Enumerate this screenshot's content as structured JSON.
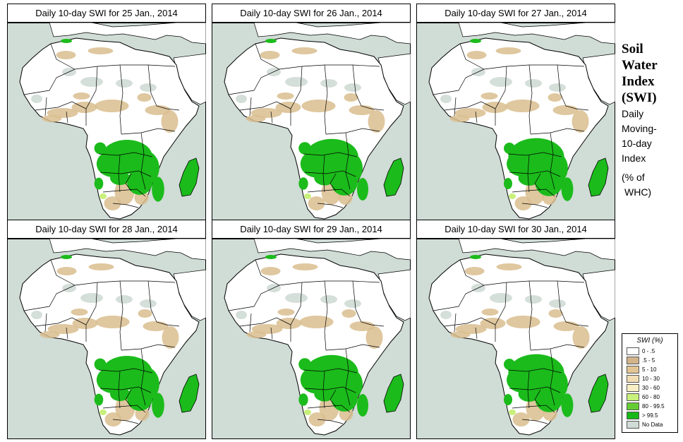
{
  "panels": [
    {
      "title": "Daily 10-day SWI for  25 Jan., 2014"
    },
    {
      "title": "Daily 10-day SWI for  26 Jan., 2014"
    },
    {
      "title": "Daily 10-day SWI for  27 Jan., 2014"
    },
    {
      "title": "Daily 10-day SWI for  28 Jan., 2014"
    },
    {
      "title": "Daily 10-day SWI for  29 Jan., 2014"
    },
    {
      "title": "Daily 10-day SWI for  30 Jan., 2014"
    }
  ],
  "side": {
    "title": [
      "Soil",
      "Water",
      "Index",
      "(SWI)"
    ],
    "subtitle": [
      "Daily",
      "Moving-",
      "10-day",
      "Index"
    ],
    "unit": [
      "(% of",
      "WHC)"
    ]
  },
  "legend": {
    "title": "SWI (%)",
    "items": [
      {
        "label": "0 - .5",
        "color": "#ffffff"
      },
      {
        "label": ".5 - 5",
        "color": "#d2b48c"
      },
      {
        "label": "5 - 10",
        "color": "#e3c595"
      },
      {
        "label": "10 - 30",
        "color": "#f2ddb5"
      },
      {
        "label": "30 - 60",
        "color": "#f8f0c4"
      },
      {
        "label": "60 - 80",
        "color": "#c8f07a"
      },
      {
        "label": "80 - 99.5",
        "color": "#66cc33"
      },
      {
        "label": "> 99.5",
        "color": "#17b817"
      },
      {
        "label": "No Data",
        "color": "#d0dcd6"
      }
    ]
  },
  "colors": {
    "ocean": "#d0dcd6",
    "land": "#ffffff",
    "dry": "#d9bd8e",
    "wet": "#1bbb1b",
    "border": "#000000"
  }
}
